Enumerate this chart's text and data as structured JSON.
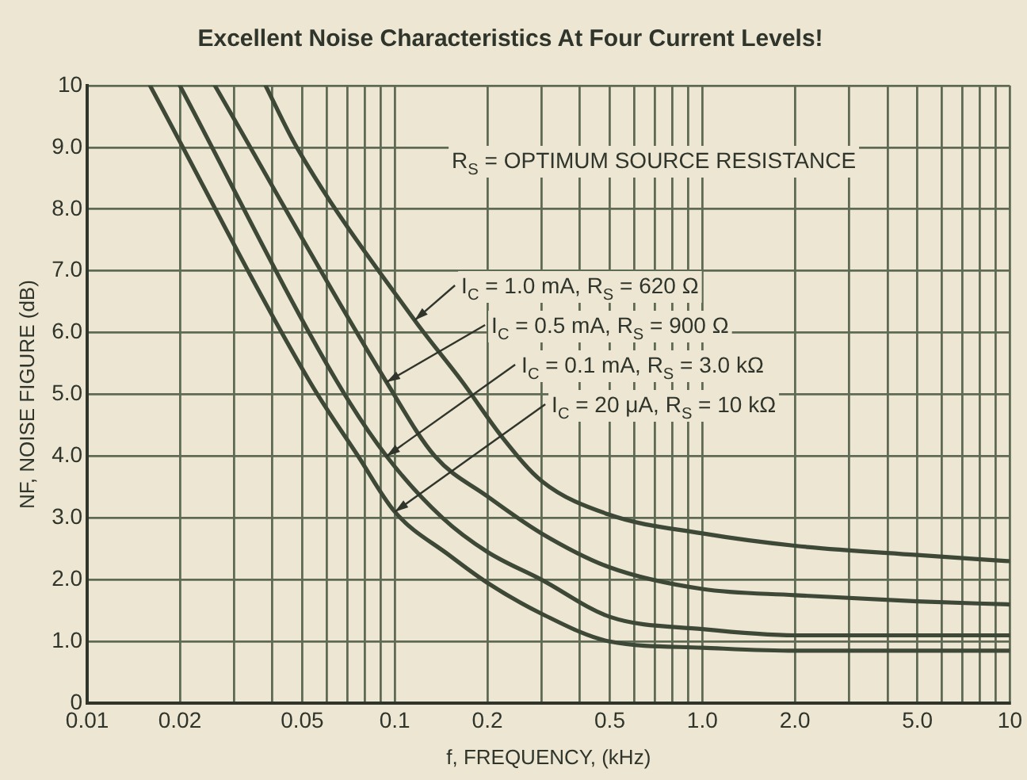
{
  "chart_data": {
    "type": "line",
    "title": "Excellent Noise Characteristics At Four Current Levels!",
    "xlabel": "f, FREQUENCY, (kHz)",
    "ylabel": "NF, NOISE FIGURE (dB)",
    "log": "x",
    "grid": true,
    "legend": false,
    "marker": "none",
    "line_style": "solid",
    "xlim": [
      0.01,
      10
    ],
    "xticks": [
      0.01,
      0.02,
      {
        "value": 0.03,
        "label": null
      },
      {
        "value": 0.04,
        "label": null
      },
      0.05,
      {
        "value": 0.06,
        "label": null
      },
      {
        "value": 0.07,
        "label": null
      },
      {
        "value": 0.08,
        "label": null
      },
      {
        "value": 0.09,
        "label": null
      },
      0.1,
      0.2,
      {
        "value": 0.3,
        "label": null
      },
      {
        "value": 0.4,
        "label": null
      },
      0.5,
      {
        "value": 0.6,
        "label": null
      },
      {
        "value": 0.7,
        "label": null
      },
      {
        "value": 0.8,
        "label": null
      },
      {
        "value": 0.9,
        "label": null
      },
      {
        "value": 1,
        "label": "1.0"
      },
      {
        "value": 2,
        "label": "2.0"
      },
      {
        "value": 3,
        "label": null
      },
      {
        "value": 4,
        "label": null
      },
      {
        "value": 5,
        "label": "5.0"
      },
      {
        "value": 6,
        "label": null
      },
      {
        "value": 7,
        "label": null
      },
      {
        "value": 8,
        "label": null
      },
      {
        "value": 9,
        "label": null
      },
      10
    ],
    "ylim": [
      0,
      10
    ],
    "yticks": [
      0,
      {
        "value": 1,
        "label": "1.0"
      },
      {
        "value": 2,
        "label": "2.0"
      },
      {
        "value": 3,
        "label": "3.0"
      },
      {
        "value": 4,
        "label": "4.0"
      },
      {
        "value": 5,
        "label": "5.0"
      },
      {
        "value": 6,
        "label": "6.0"
      },
      {
        "value": 7,
        "label": "7.0"
      },
      {
        "value": 8,
        "label": "8.0"
      },
      {
        "value": 9,
        "label": "9.0"
      },
      10
    ],
    "series": [
      {
        "color": "#3d4836",
        "x": [
          0.038,
          0.048,
          0.116,
          0.166,
          0.224,
          0.3,
          0.5,
          1,
          2,
          5,
          10
        ],
        "values": [
          10,
          9,
          6.2,
          5.2,
          4.3,
          3.6,
          3.05,
          2.75,
          2.55,
          2.4,
          2.3
        ]
      },
      {
        "color": "#3d4836",
        "x": [
          0.026,
          0.094,
          0.135,
          0.2,
          0.3,
          0.5,
          1,
          2,
          5,
          10
        ],
        "values": [
          10,
          5.2,
          4,
          3.35,
          2.75,
          2.2,
          1.85,
          1.75,
          1.65,
          1.6
        ]
      },
      {
        "color": "#3d4836",
        "x": [
          0.02,
          0.065,
          0.094,
          0.143,
          0.2,
          0.3,
          0.5,
          1,
          2,
          10
        ],
        "values": [
          10,
          5.2,
          4,
          3,
          2.45,
          2,
          1.4,
          1.2,
          1.1,
          1.1
        ]
      },
      {
        "color": "#3d4836",
        "x": [
          0.016,
          0.053,
          0.076,
          0.1,
          0.15,
          0.2,
          0.3,
          0.5,
          1,
          2,
          10
        ],
        "values": [
          10,
          5.2,
          4,
          3.1,
          2.4,
          1.95,
          1.45,
          1,
          0.9,
          0.85,
          0.85
        ]
      }
    ],
    "annotations": [
      "R$_{S}$ = OPTIMUM SOURCE RESISTANCE",
      {
        "text": "I$_{C}$ = 1.0 mA, R$_{S}$ = 620 Ω",
        "x": 0.116,
        "y": 6.2
      },
      {
        "text": "I$_{C}$ = 0.5 mA, R$_{S}$ = 900 Ω",
        "x": 0.094,
        "y": 5.2
      },
      {
        "text": "I$_{C}$ = 0.1 mA, R$_{S}$ = 3.0 kΩ",
        "x": 0.094,
        "y": 4
      },
      {
        "text": "I$_{C}$ = 20 μA, R$_{S}$ = 10 kΩ",
        "x": 0.1,
        "y": 3.1
      }
    ]
  }
}
